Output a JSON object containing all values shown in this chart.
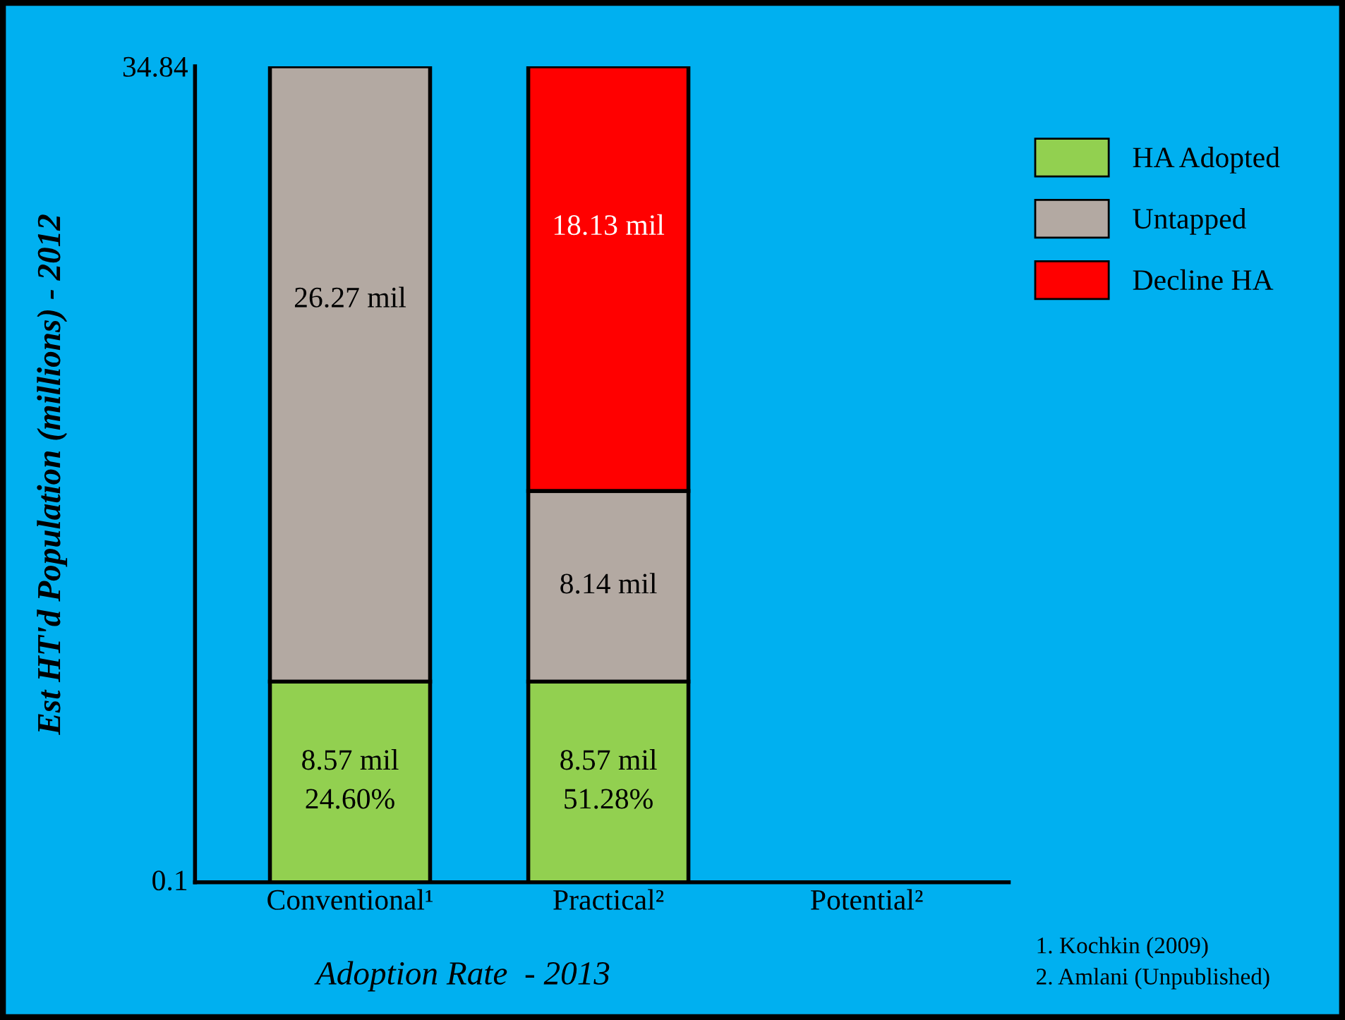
{
  "chart_data": {
    "type": "bar",
    "stacked": true,
    "xlabel": "Adoption Rate  - 2013",
    "ylabel": "Est HT'd Population (millions) - 2012",
    "categories": [
      "Conventional¹",
      "Practical²",
      "Potential²"
    ],
    "series": [
      {
        "name": "HA Adopted",
        "color": "#92d050",
        "values": [
          8.57,
          8.57,
          null
        ],
        "value_labels": [
          "8.57 mil\n24.60%",
          "8.57 mil\n51.28%",
          null
        ]
      },
      {
        "name": "Untapped",
        "color": "#b3a9a2",
        "values": [
          26.27,
          8.14,
          null
        ],
        "value_labels": [
          "26.27 mil",
          "8.14 mil",
          null
        ]
      },
      {
        "name": "Decline HA",
        "color": "#ff0000",
        "values": [
          null,
          18.13,
          null
        ],
        "value_labels": [
          null,
          "18.13 mil",
          null
        ]
      }
    ],
    "ylim": [
      0,
      34.84
    ],
    "yticks": [
      0.1,
      34.84
    ],
    "grid": false,
    "legend": "top right",
    "annotations": [
      "1. Kochkin (2009)\n2. Amlani (Unpublished)"
    ]
  }
}
